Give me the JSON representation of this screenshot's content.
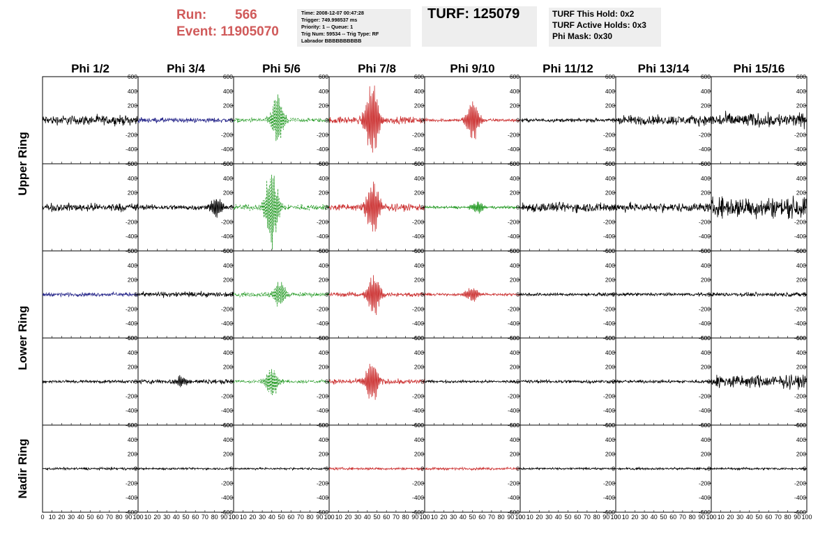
{
  "header": {
    "run_label": "Run:",
    "run_value": "566",
    "event_label": "Event:",
    "event_value": "11905070",
    "trigger_info": [
      "Time: 2008-12-07 00:47:28",
      "Trigger: 749.998537 ms",
      "Priority: 1 -- Queue: 1",
      "Trig Num: 59534 -- Trig Type: RF",
      "Labrador BBBBBBBBBB"
    ],
    "turf": "TURF: 125079",
    "turf_info": [
      "TURF This Hold: 0x2",
      "TURF Active Holds: 0x3",
      "Phi Mask: 0x30"
    ]
  },
  "chart_data": {
    "type": "line",
    "title": "",
    "column_labels": [
      "Phi 1/2",
      "Phi 3/4",
      "Phi 5/6",
      "Phi 7/8",
      "Phi 9/10",
      "Phi 11/12",
      "Phi 13/14",
      "Phi 15/16"
    ],
    "ring_labels": [
      "Upper Ring",
      "Lower Ring",
      "Nadir Ring"
    ],
    "xlim": [
      0,
      100
    ],
    "ylim": [
      -600,
      600
    ],
    "x_ticks": [
      0,
      10,
      20,
      30,
      40,
      50,
      60,
      70,
      80,
      90,
      100
    ],
    "y_ticks": [
      -600,
      -400,
      -200,
      0,
      200,
      400,
      600
    ],
    "x_tick_labels": [
      "0",
      "10",
      "20",
      "30",
      "40",
      "50",
      "60",
      "70",
      "80",
      "90",
      "100"
    ],
    "y_tick_labels": [
      "-600",
      "-400",
      "-200",
      "0",
      "200",
      "400",
      "600"
    ],
    "colors": {
      "black": "#000000",
      "blue": "#2a2a8c",
      "green": "#229922",
      "red": "#cc3333",
      "header_red": "#d05a5a"
    },
    "rows": [
      {
        "ring": "Upper Ring",
        "panels": [
          {
            "color": "black",
            "dashed": false,
            "noise": 55,
            "pulse_amp": 0,
            "pulse_center": 50
          },
          {
            "color": "blue",
            "dashed": false,
            "noise": 28,
            "pulse_amp": 0,
            "pulse_center": 50
          },
          {
            "color": "green",
            "dashed": true,
            "noise": 25,
            "pulse_amp": 380,
            "pulse_center": 46
          },
          {
            "color": "red",
            "dashed": false,
            "noise": 40,
            "pulse_amp": 600,
            "pulse_center": 45
          },
          {
            "color": "red",
            "dashed": false,
            "noise": 18,
            "pulse_amp": 330,
            "pulse_center": 50
          },
          {
            "color": "black",
            "dashed": false,
            "noise": 20,
            "pulse_amp": 0,
            "pulse_center": 50
          },
          {
            "color": "black",
            "dashed": false,
            "noise": 55,
            "pulse_amp": 0,
            "pulse_center": 50
          },
          {
            "color": "black",
            "dashed": false,
            "noise": 80,
            "pulse_amp": 0,
            "pulse_center": 50
          }
        ]
      },
      {
        "ring": "Upper Ring",
        "panels": [
          {
            "color": "black",
            "dashed": false,
            "noise": 45,
            "pulse_amp": 0,
            "pulse_center": 50
          },
          {
            "color": "black",
            "dashed": false,
            "noise": 30,
            "pulse_amp": 170,
            "pulse_center": 82
          },
          {
            "color": "green",
            "dashed": true,
            "noise": 35,
            "pulse_amp": 600,
            "pulse_center": 40
          },
          {
            "color": "red",
            "dashed": false,
            "noise": 40,
            "pulse_amp": 460,
            "pulse_center": 46
          },
          {
            "color": "green",
            "dashed": false,
            "noise": 15,
            "pulse_amp": 90,
            "pulse_center": 55
          },
          {
            "color": "black",
            "dashed": false,
            "noise": 55,
            "pulse_amp": 0,
            "pulse_center": 50
          },
          {
            "color": "black",
            "dashed": false,
            "noise": 50,
            "pulse_amp": 0,
            "pulse_center": 50
          },
          {
            "color": "black",
            "dashed": false,
            "noise": 120,
            "pulse_amp": 0,
            "pulse_center": 50
          }
        ]
      },
      {
        "ring": "Lower Ring",
        "panels": [
          {
            "color": "blue",
            "dashed": false,
            "noise": 22,
            "pulse_amp": 0,
            "pulse_center": 50
          },
          {
            "color": "black",
            "dashed": false,
            "noise": 30,
            "pulse_amp": 0,
            "pulse_center": 50
          },
          {
            "color": "green",
            "dashed": true,
            "noise": 25,
            "pulse_amp": 200,
            "pulse_center": 48
          },
          {
            "color": "red",
            "dashed": false,
            "noise": 25,
            "pulse_amp": 320,
            "pulse_center": 47
          },
          {
            "color": "red",
            "dashed": false,
            "noise": 15,
            "pulse_amp": 120,
            "pulse_center": 50
          },
          {
            "color": "black",
            "dashed": false,
            "noise": 18,
            "pulse_amp": 0,
            "pulse_center": 50
          },
          {
            "color": "black",
            "dashed": false,
            "noise": 18,
            "pulse_amp": 0,
            "pulse_center": 50
          },
          {
            "color": "black",
            "dashed": false,
            "noise": 22,
            "pulse_amp": 0,
            "pulse_center": 50
          }
        ]
      },
      {
        "ring": "Lower Ring",
        "panels": [
          {
            "color": "black",
            "dashed": false,
            "noise": 18,
            "pulse_amp": 0,
            "pulse_center": 50
          },
          {
            "color": "black",
            "dashed": false,
            "noise": 25,
            "pulse_amp": 80,
            "pulse_center": 45
          },
          {
            "color": "green",
            "dashed": true,
            "noise": 20,
            "pulse_amp": 240,
            "pulse_center": 40
          },
          {
            "color": "red",
            "dashed": false,
            "noise": 30,
            "pulse_amp": 340,
            "pulse_center": 45
          },
          {
            "color": "black",
            "dashed": false,
            "noise": 15,
            "pulse_amp": 0,
            "pulse_center": 50
          },
          {
            "color": "black",
            "dashed": false,
            "noise": 20,
            "pulse_amp": 0,
            "pulse_center": 50
          },
          {
            "color": "black",
            "dashed": false,
            "noise": 18,
            "pulse_amp": 0,
            "pulse_center": 50
          },
          {
            "color": "black",
            "dashed": false,
            "noise": 75,
            "pulse_amp": 0,
            "pulse_center": 50
          }
        ]
      },
      {
        "ring": "Nadir Ring",
        "panels": [
          {
            "color": "black",
            "dashed": false,
            "noise": 14,
            "pulse_amp": 0,
            "pulse_center": 50
          },
          {
            "color": "black",
            "dashed": false,
            "noise": 12,
            "pulse_amp": 0,
            "pulse_center": 50
          },
          {
            "color": "black",
            "dashed": false,
            "noise": 12,
            "pulse_amp": 0,
            "pulse_center": 50
          },
          {
            "color": "red",
            "dashed": false,
            "noise": 14,
            "pulse_amp": 0,
            "pulse_center": 50
          },
          {
            "color": "red",
            "dashed": false,
            "noise": 14,
            "pulse_amp": 0,
            "pulse_center": 50
          },
          {
            "color": "black",
            "dashed": false,
            "noise": 12,
            "pulse_amp": 0,
            "pulse_center": 50
          },
          {
            "color": "black",
            "dashed": false,
            "noise": 12,
            "pulse_amp": 0,
            "pulse_center": 50
          },
          {
            "color": "black",
            "dashed": false,
            "noise": 12,
            "pulse_amp": 0,
            "pulse_center": 50
          }
        ]
      }
    ]
  }
}
